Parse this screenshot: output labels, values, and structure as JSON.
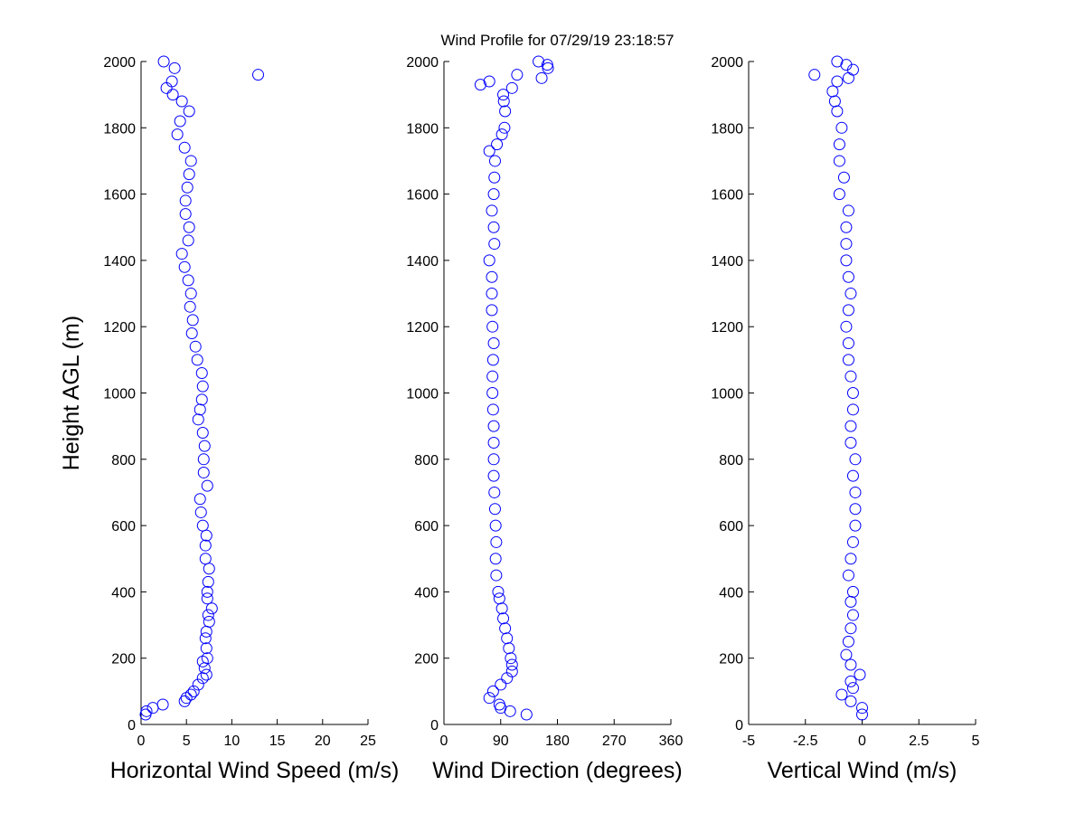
{
  "chart_data": [
    {
      "type": "scatter",
      "x_label": "Horizontal Wind Speed (m/s)",
      "y_label": "Height AGL (m)",
      "color": "#0000ff",
      "xlim": [
        0,
        25
      ],
      "xticks": [
        0,
        5,
        10,
        15,
        20,
        25
      ],
      "ylim": [
        0,
        2000
      ],
      "yticks": [
        0,
        200,
        400,
        600,
        800,
        1000,
        1200,
        1400,
        1600,
        1800,
        2000
      ],
      "x": [
        0.5,
        0.6,
        1.3,
        2.4,
        4.8,
        5,
        5.5,
        5.8,
        6.3,
        6.8,
        7.2,
        7,
        6.8,
        7.3,
        7.2,
        7.1,
        7.2,
        7.5,
        7.4,
        7.8,
        7.3,
        7.3,
        7.4,
        7.5,
        7.1,
        7.1,
        7.2,
        6.8,
        6.6,
        6.5,
        7.3,
        6.9,
        6.9,
        7,
        6.8,
        6.3,
        6.5,
        6.7,
        6.8,
        6.7,
        6.2,
        6,
        5.6,
        5.7,
        5.4,
        5.5,
        5.2,
        4.8,
        4.5,
        5.2,
        5.3,
        4.9,
        4.9,
        5.1,
        5.3,
        5.5,
        4.8,
        4,
        4.3,
        5.3,
        4.5,
        3.5,
        2.8,
        3.4,
        12.9,
        3.7,
        2.5
      ],
      "values": [
        30,
        40,
        50,
        60,
        70,
        80,
        90,
        100,
        120,
        140,
        150,
        170,
        190,
        200,
        230,
        260,
        280,
        310,
        330,
        350,
        380,
        400,
        430,
        470,
        500,
        540,
        570,
        600,
        640,
        680,
        720,
        760,
        800,
        840,
        880,
        920,
        950,
        980,
        1020,
        1060,
        1100,
        1140,
        1180,
        1220,
        1260,
        1300,
        1340,
        1380,
        1420,
        1460,
        1500,
        1540,
        1580,
        1620,
        1660,
        1700,
        1740,
        1780,
        1820,
        1850,
        1880,
        1900,
        1920,
        1940,
        1960,
        1980,
        2000
      ]
    },
    {
      "type": "scatter",
      "title": "Wind Profile for  07/29/19 23:18:57",
      "x_label": "Wind Direction (degrees)",
      "color": "#0000ff",
      "xlim": [
        0,
        360
      ],
      "xticks": [
        0,
        90,
        180,
        270,
        360
      ],
      "ylim": [
        0,
        2000
      ],
      "yticks": [
        0,
        200,
        400,
        600,
        800,
        1000,
        1200,
        1400,
        1600,
        1800,
        2000
      ],
      "x": [
        131,
        105,
        90,
        88,
        72,
        78,
        90,
        100,
        108,
        108,
        106,
        103,
        100,
        97,
        94,
        92,
        88,
        86,
        83,
        82,
        83,
        82,
        81,
        80,
        79,
        79,
        79,
        79,
        78,
        77,
        77,
        78,
        79,
        77,
        76,
        76,
        76,
        72,
        80,
        79,
        76,
        79,
        80,
        81,
        72,
        84,
        92,
        96,
        97,
        95,
        94,
        108,
        58,
        72,
        155,
        116,
        165,
        164,
        150
      ],
      "values": [
        30,
        40,
        50,
        60,
        80,
        100,
        120,
        140,
        160,
        180,
        200,
        230,
        260,
        290,
        320,
        350,
        380,
        400,
        450,
        500,
        550,
        600,
        650,
        700,
        750,
        800,
        850,
        900,
        950,
        1000,
        1050,
        1100,
        1150,
        1200,
        1250,
        1300,
        1350,
        1400,
        1450,
        1500,
        1550,
        1600,
        1650,
        1700,
        1730,
        1750,
        1780,
        1800,
        1850,
        1880,
        1900,
        1920,
        1930,
        1940,
        1950,
        1960,
        1980,
        1990,
        2000
      ]
    },
    {
      "type": "scatter",
      "x_label": "Vertical Wind (m/s)",
      "color": "#0000ff",
      "xlim": [
        -5,
        5
      ],
      "xticks": [
        -5,
        -2.5,
        0,
        2.5,
        5
      ],
      "ylim": [
        0,
        2000
      ],
      "yticks": [
        0,
        200,
        400,
        600,
        800,
        1000,
        1200,
        1400,
        1600,
        1800,
        2000
      ],
      "x": [
        0,
        0,
        -0.5,
        -0.9,
        -0.4,
        -0.5,
        -0.1,
        -0.5,
        -0.7,
        -0.6,
        -0.5,
        -0.4,
        -0.5,
        -0.4,
        -0.6,
        -0.5,
        -0.4,
        -0.3,
        -0.3,
        -0.3,
        -0.4,
        -0.3,
        -0.5,
        -0.5,
        -0.4,
        -0.4,
        -0.5,
        -0.6,
        -0.6,
        -0.7,
        -0.6,
        -0.5,
        -0.6,
        -0.7,
        -0.7,
        -0.7,
        -0.6,
        -1.0,
        -0.8,
        -1.0,
        -1.0,
        -0.9,
        -1.1,
        -1.2,
        -1.3,
        -1.1,
        -0.6,
        -2.1,
        -0.4,
        -0.7,
        -1.1
      ],
      "values": [
        30,
        50,
        70,
        90,
        110,
        130,
        150,
        180,
        210,
        250,
        290,
        330,
        370,
        400,
        450,
        500,
        550,
        600,
        650,
        700,
        750,
        800,
        850,
        900,
        950,
        1000,
        1050,
        1100,
        1150,
        1200,
        1250,
        1300,
        1350,
        1400,
        1450,
        1500,
        1550,
        1600,
        1650,
        1700,
        1750,
        1800,
        1850,
        1880,
        1910,
        1940,
        1950,
        1960,
        1975,
        1990,
        2000
      ]
    }
  ]
}
